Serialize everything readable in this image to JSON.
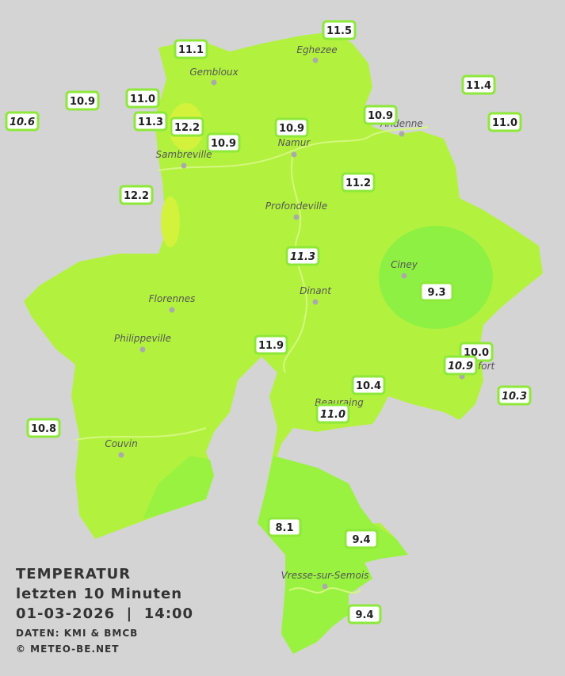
{
  "legend": {
    "title": "TEMPERATUR",
    "period": "letzten 10 Minuten",
    "datetime": "01-03-2026  |  14:00",
    "source": "DATEN: KMI & BMCB",
    "copyright": "© METEO-BE.NET"
  },
  "cities": [
    "Eghezee",
    "Gembloux",
    "Andenne",
    "Namur",
    "Sambreville",
    "Profondeville",
    "Ciney",
    "Dinant",
    "Florennes",
    "Philippeville",
    "Rochefort",
    "Beauraing",
    "Couvin",
    "Vresse-sur-Semois"
  ],
  "stations": [
    {
      "label": "11.5"
    },
    {
      "label": "11.1"
    },
    {
      "label": "11.4"
    },
    {
      "label": "10.9"
    },
    {
      "label": "11.0"
    },
    {
      "label": "10.6",
      "italic": true
    },
    {
      "label": "11.3"
    },
    {
      "label": "12.2"
    },
    {
      "label": "10.9"
    },
    {
      "label": "10.9"
    },
    {
      "label": "11.0"
    },
    {
      "label": "10.9"
    },
    {
      "label": "11.2"
    },
    {
      "label": "12.2"
    },
    {
      "label": "11.3",
      "italic": true
    },
    {
      "label": "9.3"
    },
    {
      "label": "11.9"
    },
    {
      "label": "10.0"
    },
    {
      "label": "10.9",
      "italic": true
    },
    {
      "label": "10.4"
    },
    {
      "label": "11.0",
      "italic": true
    },
    {
      "label": "10.3",
      "italic": true
    },
    {
      "label": "10.8"
    },
    {
      "label": "8.1"
    },
    {
      "label": "9.4"
    },
    {
      "label": "9.4"
    }
  ]
}
